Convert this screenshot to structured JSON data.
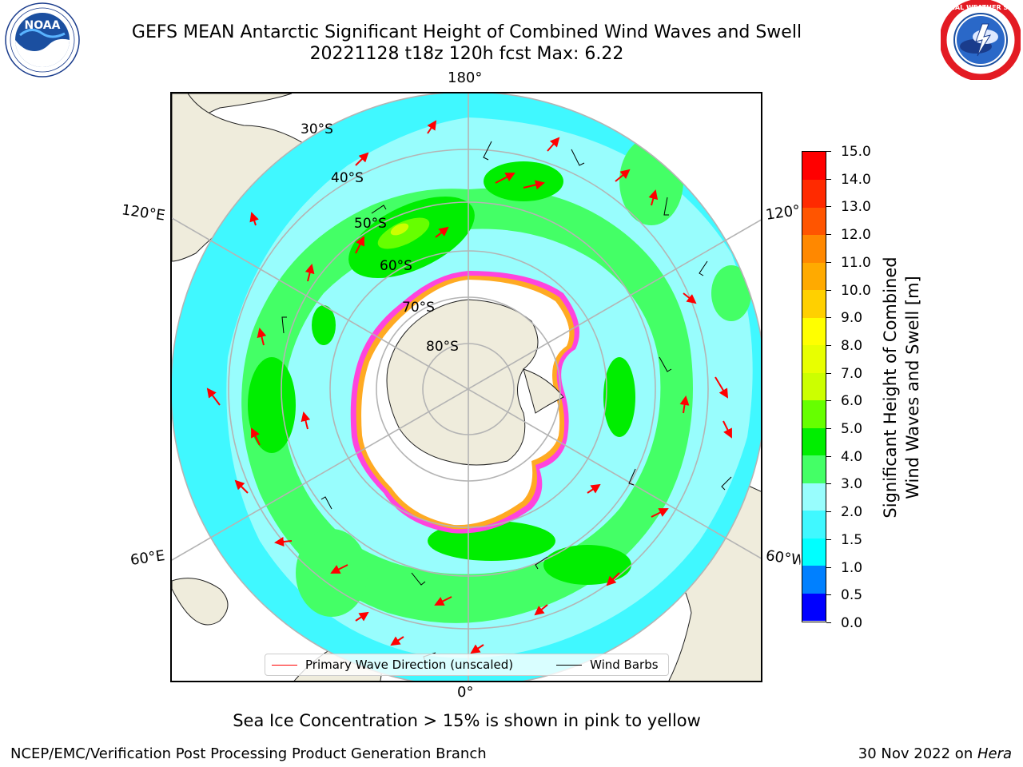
{
  "title": {
    "line1": "GEFS MEAN Antarctic Significant Height of Combined Wind Waves and Swell",
    "line2": "20221128 t18z 120h fcst   Max: 6.22"
  },
  "logos": {
    "left": {
      "name": "noaa-logo",
      "text": "NOAA",
      "ring_text": "NATIONAL OCEANIC AND ATMOSPHERIC ADMINISTRATION · U.S. DEPARTMENT OF COMMERCE"
    },
    "right": {
      "name": "national-weather-service-logo",
      "ring_text": "NATIONAL WEATHER SERVICE"
    }
  },
  "map": {
    "projection": "south-polar-stereographic",
    "longitude_labels": {
      "top": "180°",
      "bottom": "0°",
      "upper_left": "120°E",
      "lower_left": "60°E",
      "upper_right": "120°W",
      "lower_right": "60°W"
    },
    "latitude_labels": [
      "30°S",
      "40°S",
      "50°S",
      "60°S",
      "70°S",
      "80°S"
    ],
    "colors": {
      "land": "#efecdc",
      "ice": "#ffffff",
      "ice_edge": [
        "#ff44dd",
        "#ffaa22",
        "#f7e010"
      ],
      "gridline": "#b4b4b4"
    }
  },
  "legend": {
    "primary_wave": {
      "label": "Primary Wave Direction (unscaled)",
      "color": "#ff0000"
    },
    "wind_barbs": {
      "label": "Wind Barbs",
      "color": "#000000"
    }
  },
  "colorbar": {
    "label_line1": "Significant Height of Combined",
    "label_line2": "Wind Waves and Swell [m]",
    "ticks": [
      "0.0",
      "0.5",
      "1.0",
      "1.5",
      "2.0",
      "3.0",
      "4.0",
      "5.0",
      "6.0",
      "7.0",
      "8.0",
      "9.0",
      "10.0",
      "11.0",
      "12.0",
      "13.0",
      "14.0",
      "15.0"
    ],
    "colors": [
      "#0000ff",
      "#0080ff",
      "#00ffff",
      "#40f8ff",
      "#98fdfd",
      "#44ff66",
      "#00ee00",
      "#66ff00",
      "#ccff00",
      "#e8ff00",
      "#ffff00",
      "#ffd000",
      "#ffaa00",
      "#ff8800",
      "#ff5500",
      "#ff2a00",
      "#ff0000"
    ]
  },
  "note": "Sea Ice Concentration > 15% is shown in pink to yellow",
  "footer": {
    "left": "NCEP/EMC/Verification Post Processing Product Generation Branch",
    "right_date": "30 Nov 2022 on ",
    "right_host": "Hera"
  }
}
